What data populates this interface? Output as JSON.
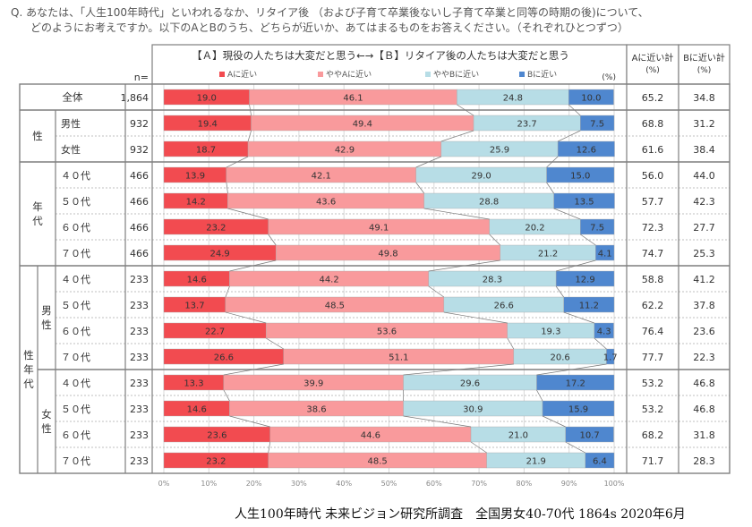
{
  "question": {
    "line1": "Q. あなたは、「人生100年時代」といわれるなか、リタイア後 （および子育て卒業後ないし子育て卒業と同等の時期の後)について、",
    "line2": "どのようにお考えですか。以下のAとBのうち、どちらが近いか、あてはまるものをお答えください。（それぞれひとつずつ）"
  },
  "header": {
    "n_label": "n=",
    "a_total": "Aに近い計",
    "b_total": "Bに近い計",
    "pct": "(%)"
  },
  "footer": "人生100年時代 未来ビジョン研究所調査　全国男女40-70代 1864s  2020年6月",
  "groups": [
    {
      "label": "全体",
      "rows": [
        0
      ]
    },
    {
      "label": "性",
      "rows": [
        1,
        2
      ]
    },
    {
      "label": "年代",
      "rows": [
        3,
        4,
        5,
        6
      ]
    },
    {
      "label": "性年代",
      "rows": [
        7,
        8,
        9,
        10,
        11,
        12,
        13,
        14
      ],
      "subgroups": [
        {
          "label": "男性",
          "rows": [
            7,
            8,
            9,
            10
          ]
        },
        {
          "label": "女性",
          "rows": [
            11,
            12,
            13,
            14
          ]
        }
      ]
    }
  ],
  "colors": {
    "a": "#f24b50",
    "ya": "#f99a9c",
    "yb": "#b7dde6",
    "b": "#4f87cf",
    "grid": "#d8d8d8",
    "border": "#7f7f7f"
  },
  "chart_data": {
    "type": "bar",
    "stacked": true,
    "orientation": "horizontal",
    "title": "【Ａ】現役の人たちは大変だと思う←→【Ｂ】リタイア後の人たちは大変だと思う",
    "unit": "(%)",
    "xlim": [
      0,
      100
    ],
    "x_ticks": [
      "0%",
      "10%",
      "20%",
      "30%",
      "40%",
      "50%",
      "60%",
      "70%",
      "80%",
      "90%",
      "100%"
    ],
    "legend": [
      "Aに近い",
      "ややAに近い",
      "ややBに近い",
      "Bに近い"
    ],
    "legend_position": "top",
    "categories": [
      "全体",
      "男性",
      "女性",
      "４０代",
      "５０代",
      "６０代",
      "７０代",
      "４０代",
      "５０代",
      "６０代",
      "７０代",
      "４０代",
      "５０代",
      "６０代",
      "７０代"
    ],
    "n": [
      "1,864",
      "932",
      "932",
      "466",
      "466",
      "466",
      "466",
      "233",
      "233",
      "233",
      "233",
      "233",
      "233",
      "233",
      "233"
    ],
    "series": [
      {
        "name": "Aに近い",
        "values": [
          19.0,
          19.4,
          18.7,
          13.9,
          14.2,
          23.2,
          24.9,
          14.6,
          13.7,
          22.7,
          26.6,
          13.3,
          14.6,
          23.6,
          23.2
        ]
      },
      {
        "name": "ややAに近い",
        "values": [
          46.1,
          49.4,
          42.9,
          42.1,
          43.6,
          49.1,
          49.8,
          44.2,
          48.5,
          53.6,
          51.1,
          39.9,
          38.6,
          44.6,
          48.5
        ]
      },
      {
        "name": "ややBに近い",
        "values": [
          24.8,
          23.7,
          25.9,
          29.0,
          28.8,
          20.2,
          21.2,
          28.3,
          26.6,
          19.3,
          20.6,
          29.6,
          30.9,
          21.0,
          21.9
        ]
      },
      {
        "name": "Bに近い",
        "values": [
          10.0,
          7.5,
          12.6,
          15.0,
          13.5,
          7.5,
          4.1,
          12.9,
          11.2,
          4.3,
          1.7,
          17.2,
          15.9,
          10.7,
          6.4
        ]
      }
    ],
    "a_total": [
      "65.2",
      "68.8",
      "61.6",
      "56.0",
      "57.7",
      "72.3",
      "74.7",
      "58.8",
      "62.2",
      "76.4",
      "77.7",
      "53.2",
      "53.2",
      "68.2",
      "71.7"
    ],
    "b_total": [
      "34.8",
      "31.2",
      "38.4",
      "44.0",
      "42.3",
      "27.7",
      "25.3",
      "41.2",
      "37.8",
      "23.6",
      "22.3",
      "46.8",
      "46.8",
      "31.8",
      "28.3"
    ]
  }
}
